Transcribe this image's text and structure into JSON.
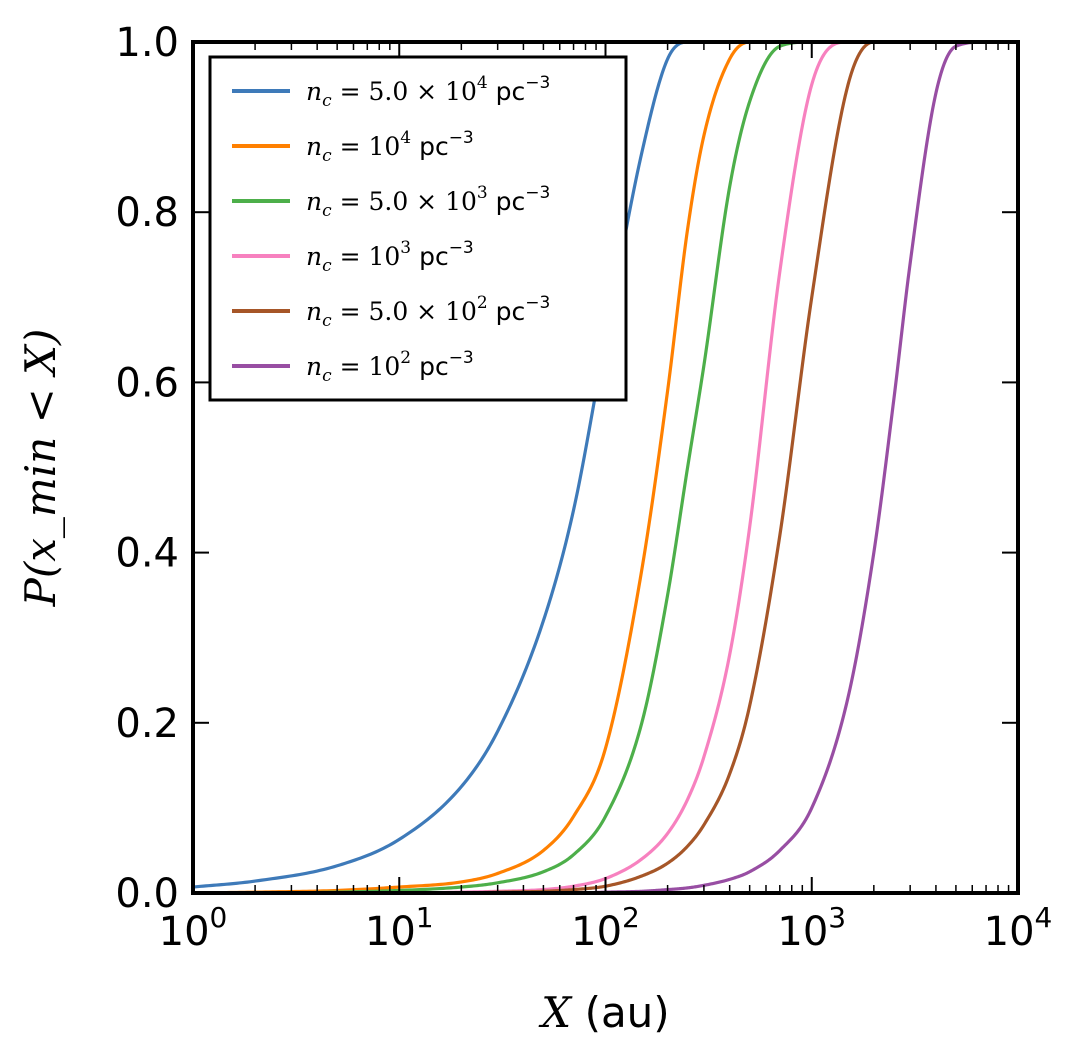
{
  "chart_data": {
    "type": "line",
    "x_scale": "log",
    "xlim": [
      1,
      10000
    ],
    "ylim": [
      0,
      1
    ],
    "grid": false,
    "legend_position": "top-left",
    "xlabel": {
      "symbol": "X",
      "unit": "(au)"
    },
    "ylabel": "P(x_min < X)",
    "x_ticks": [
      {
        "value": 1,
        "base": "10",
        "exp": "0"
      },
      {
        "value": 10,
        "base": "10",
        "exp": "1"
      },
      {
        "value": 100,
        "base": "10",
        "exp": "2"
      },
      {
        "value": 1000,
        "base": "10",
        "exp": "3"
      },
      {
        "value": 10000,
        "base": "10",
        "exp": "4"
      }
    ],
    "y_ticks": [
      {
        "value": 0,
        "label": "0.0"
      },
      {
        "value": 0.2,
        "label": "0.2"
      },
      {
        "value": 0.4,
        "label": "0.4"
      },
      {
        "value": 0.6,
        "label": "0.6"
      },
      {
        "value": 0.8,
        "label": "0.8"
      },
      {
        "value": 1,
        "label": "1.0"
      }
    ],
    "x": [
      1,
      2,
      5,
      10,
      20,
      30,
      50,
      70,
      100,
      150,
      200,
      250,
      300,
      400,
      500,
      700,
      1000,
      1500,
      2000,
      2500,
      3000,
      4000,
      5000,
      7000,
      10000
    ],
    "series": [
      {
        "name_prefix": "n",
        "name_sub": "c",
        "name_mid": "= 5.0 × 10",
        "name_exp": "4",
        "name_unit": "pc",
        "name_unit_exp": "−3",
        "color": "#3e7ab9",
        "values": [
          0.007,
          0.014,
          0.032,
          0.063,
          0.125,
          0.19,
          0.32,
          0.45,
          0.65,
          0.87,
          0.98,
          1.0,
          1.0,
          1.0,
          1.0,
          1.0,
          1.0,
          1.0,
          1.0,
          1.0,
          1.0,
          1.0,
          1.0,
          1.0,
          1.0
        ]
      },
      {
        "name_prefix": "n",
        "name_sub": "c",
        "name_mid": "= 10",
        "name_exp": "4",
        "name_unit": "pc",
        "name_unit_exp": "−3",
        "color": "#ff8000",
        "values": [
          0.0,
          0.001,
          0.003,
          0.007,
          0.013,
          0.023,
          0.05,
          0.09,
          0.17,
          0.38,
          0.59,
          0.78,
          0.89,
          0.98,
          1.0,
          1.0,
          1.0,
          1.0,
          1.0,
          1.0,
          1.0,
          1.0,
          1.0,
          1.0,
          1.0
        ]
      },
      {
        "name_prefix": "n",
        "name_sub": "c",
        "name_mid": "= 5.0 × 10",
        "name_exp": "3",
        "name_unit": "pc",
        "name_unit_exp": "−3",
        "color": "#4daf4a",
        "values": [
          0.0,
          0.0,
          0.001,
          0.003,
          0.007,
          0.012,
          0.025,
          0.045,
          0.09,
          0.2,
          0.35,
          0.5,
          0.62,
          0.83,
          0.93,
          0.995,
          1.0,
          1.0,
          1.0,
          1.0,
          1.0,
          1.0,
          1.0,
          1.0,
          1.0
        ]
      },
      {
        "name_prefix": "n",
        "name_sub": "c",
        "name_mid": "= 10",
        "name_exp": "3",
        "name_unit": "pc",
        "name_unit_exp": "−3",
        "color": "#f781bf",
        "values": [
          0.0,
          0.0,
          0.0,
          0.0,
          0.001,
          0.002,
          0.004,
          0.008,
          0.017,
          0.04,
          0.07,
          0.11,
          0.16,
          0.28,
          0.43,
          0.73,
          0.95,
          1.0,
          1.0,
          1.0,
          1.0,
          1.0,
          1.0,
          1.0,
          1.0
        ]
      },
      {
        "name_prefix": "n",
        "name_sub": "c",
        "name_mid": "= 5.0 × 10",
        "name_exp": "2",
        "name_unit": "pc",
        "name_unit_exp": "−3",
        "color": "#a65628",
        "values": [
          0.0,
          0.0,
          0.0,
          0.0,
          0.0,
          0.001,
          0.002,
          0.004,
          0.008,
          0.02,
          0.035,
          0.055,
          0.08,
          0.14,
          0.22,
          0.42,
          0.7,
          0.95,
          1.0,
          1.0,
          1.0,
          1.0,
          1.0,
          1.0,
          1.0
        ]
      },
      {
        "name_prefix": "n",
        "name_sub": "c",
        "name_mid": "= 10",
        "name_exp": "2",
        "name_unit": "pc",
        "name_unit_exp": "−3",
        "color": "#984ea3",
        "values": [
          0.0,
          0.0,
          0.0,
          0.0,
          0.0,
          0.0,
          0.0,
          0.0,
          0.001,
          0.002,
          0.004,
          0.006,
          0.009,
          0.016,
          0.025,
          0.05,
          0.1,
          0.23,
          0.4,
          0.58,
          0.74,
          0.94,
          0.995,
          1.0,
          1.0
        ]
      }
    ]
  }
}
